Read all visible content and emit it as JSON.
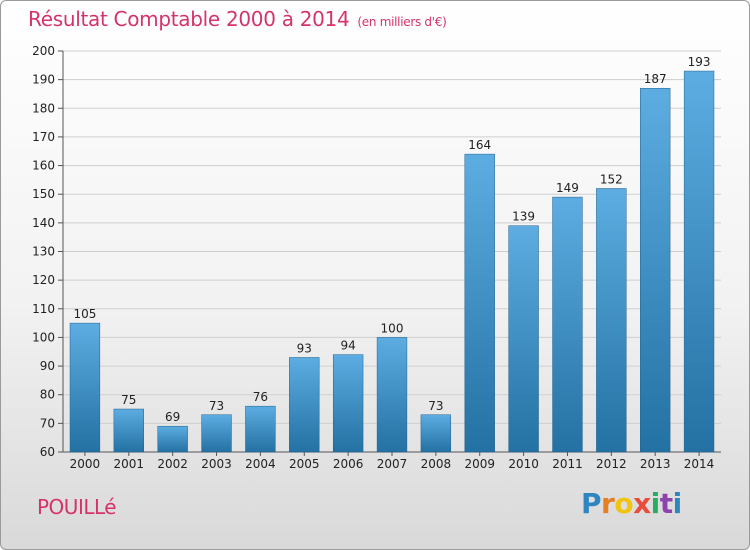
{
  "header": {
    "title": "Résultat Comptable 2000 à 2014",
    "subtitle": "(en milliers d'€)"
  },
  "footer": {
    "commune": "POUILLé",
    "logo_letters": [
      "P",
      "r",
      "o",
      "x",
      "i",
      "t",
      "i"
    ]
  },
  "colors": {
    "title": "#d6336c",
    "bar_light": "#5dade2",
    "bar_dark": "#2471a3"
  },
  "chart_data": {
    "type": "bar",
    "title": "Résultat Comptable 2000 à 2014",
    "subtitle": "(en milliers d'€)",
    "xlabel": "",
    "ylabel": "",
    "categories": [
      "2000",
      "2001",
      "2002",
      "2003",
      "2004",
      "2005",
      "2006",
      "2007",
      "2008",
      "2009",
      "2010",
      "2011",
      "2012",
      "2013",
      "2014"
    ],
    "values": [
      105,
      75,
      69,
      73,
      76,
      93,
      94,
      100,
      73,
      164,
      139,
      149,
      152,
      187,
      193
    ],
    "ylim": [
      60,
      200
    ],
    "yticks": [
      60,
      70,
      80,
      90,
      100,
      110,
      120,
      130,
      140,
      150,
      160,
      170,
      180,
      190,
      200
    ],
    "grid": true,
    "legend": "none"
  }
}
